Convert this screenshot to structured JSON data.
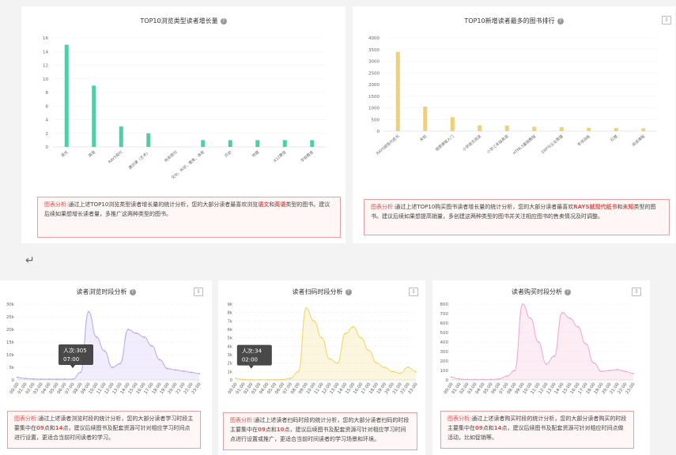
{
  "return_symbol": "↵",
  "colors": {
    "teal": "#4ccfa6",
    "gold": "#f1cf72",
    "purple": "#b7a5f2",
    "yellow": "#f5d35a",
    "pink": "#f0a6cf",
    "note_red": "#d9534f"
  },
  "icons": {
    "help": "question-circle-icon",
    "download": "download-icon"
  },
  "help_glyph": "?",
  "download_glyph": "⇩",
  "charts": {
    "c1": {
      "title": "TOP10浏览类型读者增长量"
    },
    "c2": {
      "title": "TOP10新增读者最多的图书排行"
    },
    "c3": {
      "title": "读者浏览时段分析"
    },
    "c4": {
      "title": "读者扫码时段分析"
    },
    "c5": {
      "title": "读者购买时段分析"
    }
  },
  "notes": {
    "n1": {
      "label": "图表分析:",
      "p1": "通过上述TOP10浏览类型读者增长量的统计分析，您的大部分读者最喜欢浏览",
      "h1": "语文",
      "p2": "和",
      "h2": "英语",
      "p3": "类型的图书。建议后续如果想增长读者量，多推广这两种类型的图书。"
    },
    "n2": {
      "label": "图表分析:",
      "p1": "通过上述TOP10购买图书读者增长量的统计分析，您的大部分读者最喜欢",
      "h1": "RAYS就现代纸书",
      "p2": "和",
      "h2": "未知",
      "p3": "类型的图书。建议后续如果想提高销量，多创建这两种类型的图书并关注相应图书的售卖情况及时调整。"
    },
    "n3": {
      "label": "图表分析:",
      "p1": "通过上述读者浏览时段的统计分析，您的大部分读者学习时段主要集中在",
      "h1": "09",
      "p2": "点和",
      "h2": "14",
      "p3": "点，建议后续图书及配套资源可针对相应学习时间点进行设置，更适合当前时间读者的学习。"
    },
    "n4": {
      "label": "图表分析:",
      "p1": "通过上述读者扫码时段的统计分析，您的大部分读者扫码的时段主要集中在",
      "h1": "09",
      "p2": "点和",
      "h2": "10",
      "p3": "点，建议后续图书及配套资源可针对相应学习时间点进行设置或推广，更适合当前时间读者的学习场景和环境。"
    },
    "n5": {
      "label": "图表分析:",
      "p1": "通过上述读者购买时段的统计分析，您的大部分读者购买的时段主要集中在",
      "h1": "09",
      "p2": "点和",
      "h2": "14",
      "p3": "点，建议后续图书及配套资源可针对相应时间点做活动，比如促销等。"
    }
  },
  "tooltips": {
    "t3": {
      "line1": "人次:305",
      "line2": "07:00"
    },
    "t4": {
      "line1": "人次:34",
      "line2": "02:00"
    }
  },
  "chart_data": [
    {
      "type": "bar",
      "title": "TOP10浏览类型读者增长量",
      "categories": [
        "语文",
        "英语",
        "RAYS现代",
        "通识课（艺术）",
        "商务周刊",
        "文化、科学、教育、体育",
        "历史",
        "地理",
        "K12教育",
        "学前教育"
      ],
      "values": [
        15,
        9,
        3,
        2,
        0,
        1,
        1,
        1,
        1,
        1
      ],
      "ylim": [
        0,
        16
      ],
      "yticks": [
        0,
        2,
        4,
        6,
        8,
        10,
        12,
        14,
        16
      ],
      "yticklabels": [
        "0",
        "2",
        "4",
        "6",
        "8",
        "10",
        "12",
        "14",
        "16"
      ]
    },
    {
      "type": "bar",
      "title": "TOP10新增读者最多的图书排行",
      "categories": [
        "RAYS就现代纸书",
        "未知",
        "语感课程入门",
        "小学语文阅读",
        "小学三年级英语",
        "HTML5基础教程",
        "ERP与企业管理",
        "专项训练",
        "红楼",
        "阅读课程"
      ],
      "values": [
        3400,
        1050,
        600,
        250,
        240,
        190,
        170,
        140,
        130,
        120
      ],
      "ylim": [
        0,
        4000
      ],
      "yticks": [
        0,
        500,
        1000,
        1500,
        2000,
        2500,
        3000,
        3500,
        4000
      ],
      "yticklabels": [
        "0",
        "500",
        "1000",
        "1500",
        "2000",
        "2500",
        "3000",
        "3500",
        "4000"
      ]
    },
    {
      "type": "area",
      "title": "读者浏览时段分析",
      "x": [
        "00:00",
        "01:00",
        "02:00",
        "03:00",
        "04:00",
        "05:00",
        "06:00",
        "07:00",
        "08:00",
        "09:00",
        "10:00",
        "11:00",
        "12:00",
        "13:00",
        "14:00",
        "15:00",
        "16:00",
        "17:00",
        "18:00",
        "19:00",
        "20:00",
        "21:00",
        "22:00",
        "23:00"
      ],
      "values": [
        1000,
        600,
        400,
        300,
        300,
        300,
        300,
        305,
        3000,
        27000,
        17000,
        11500,
        5000,
        6500,
        20000,
        18500,
        17000,
        13500,
        8000,
        4500,
        4000,
        3500,
        3000,
        2500
      ],
      "ylim": [
        0,
        30000
      ],
      "yticks": [
        0,
        5000,
        10000,
        15000,
        20000,
        25000,
        30000
      ],
      "yticklabels": [
        "0",
        "5k",
        "10k",
        "15k",
        "20k",
        "25k",
        "30k"
      ]
    },
    {
      "type": "area",
      "title": "读者扫码时段分析",
      "x": [
        "00:00",
        "01:00",
        "02:00",
        "03:00",
        "04:00",
        "05:00",
        "06:00",
        "07:00",
        "08:00",
        "09:00",
        "10:00",
        "11:00",
        "12:00",
        "13:00",
        "14:00",
        "15:00",
        "16:00",
        "17:00",
        "18:00",
        "19:00",
        "20:00",
        "21:00",
        "22:00",
        "23:00"
      ],
      "values": [
        200,
        60,
        34,
        20,
        20,
        20,
        50,
        200,
        1000,
        8500,
        7000,
        5000,
        2500,
        2000,
        5500,
        6300,
        5000,
        3500,
        2000,
        1500,
        1000,
        800,
        1500,
        1000
      ],
      "ylim": [
        0,
        9000
      ],
      "yticks": [
        0,
        1000,
        2000,
        3000,
        4000,
        5000,
        6000,
        7000,
        8000,
        9000
      ],
      "yticklabels": [
        "0",
        "1k",
        "2k",
        "3k",
        "4k",
        "5k",
        "6k",
        "7k",
        "8k",
        "9k"
      ]
    },
    {
      "type": "area",
      "title": "读者购买时段分析",
      "x": [
        "00:00",
        "01:00",
        "02:00",
        "03:00",
        "04:00",
        "05:00",
        "06:00",
        "07:00",
        "08:00",
        "09:00",
        "10:00",
        "11:00",
        "12:00",
        "13:00",
        "14:00",
        "15:00",
        "16:00",
        "17:00",
        "18:00",
        "19:00",
        "20:00",
        "21:00",
        "22:00",
        "23:00"
      ],
      "values": [
        30,
        10,
        5,
        5,
        5,
        5,
        10,
        40,
        100,
        800,
        650,
        400,
        170,
        250,
        710,
        650,
        560,
        380,
        180,
        90,
        100,
        110,
        90,
        70
      ],
      "ylim": [
        0,
        800
      ],
      "yticks": [
        0,
        100,
        200,
        300,
        400,
        500,
        600,
        700,
        800
      ],
      "yticklabels": [
        "0",
        "100",
        "200",
        "300",
        "400",
        "500",
        "600",
        "700",
        "800"
      ]
    }
  ]
}
